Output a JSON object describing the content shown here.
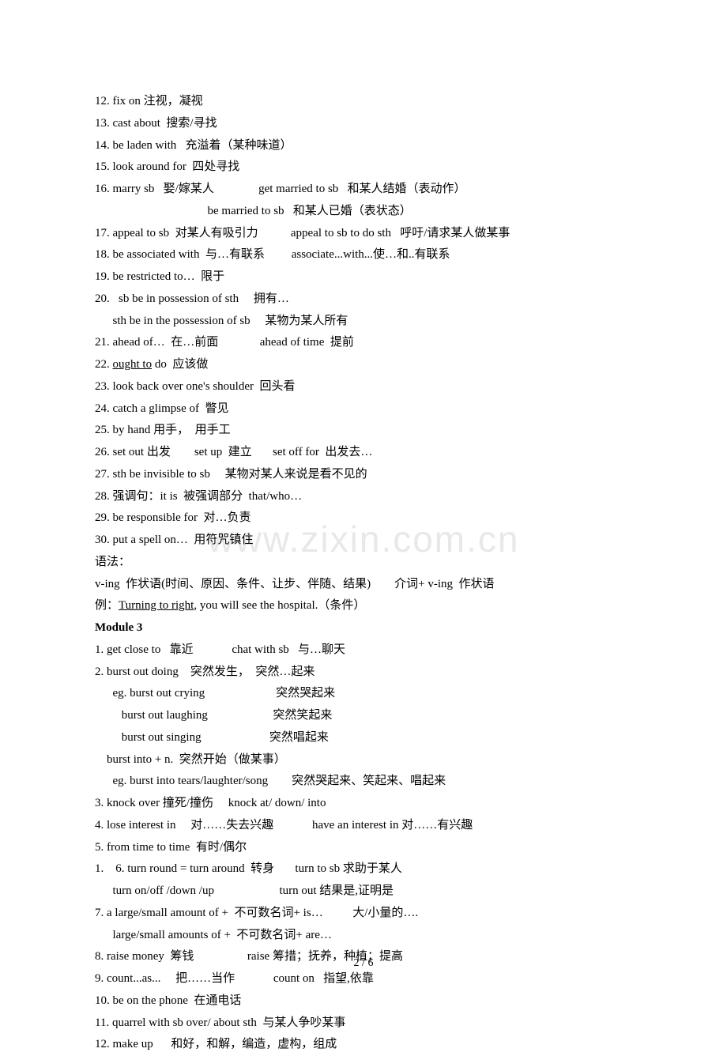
{
  "watermark": "www.zixin.com.cn",
  "lines": [
    {
      "text": "12. fix on 注视，凝视"
    },
    {
      "text": "13. cast about  搜索/寻找"
    },
    {
      "text": "14. be laden with   充溢着（某种味道）"
    },
    {
      "text": "15. look around for  四处寻找"
    },
    {
      "text": "16. marry sb   娶/嫁某人               get married to sb   和某人结婚（表动作）"
    },
    {
      "text": "                                      be married to sb   和某人已婚（表状态）"
    },
    {
      "text": "17. appeal to sb  对某人有吸引力           appeal to sb to do sth   呼吁/请求某人做某事"
    },
    {
      "text": "18. be associated with  与…有联系         associate...with...使…和..有联系"
    },
    {
      "text": "19. be restricted to…  限于"
    },
    {
      "text": "20.   sb be in possession of sth     拥有…"
    },
    {
      "text": "      sth be in the possession of sb     某物为某人所有"
    },
    {
      "text": "21. ahead of…  在…前面              ahead of time  提前"
    },
    {
      "text": "22. ",
      "parts": [
        {
          "text": "22. "
        },
        {
          "text": "ought to",
          "underline": true
        },
        {
          "text": " do  应该做"
        }
      ]
    },
    {
      "text": "23. look back over one's shoulder  回头看"
    },
    {
      "text": "24. catch a glimpse of  瞥见"
    },
    {
      "text": "25. by hand 用手，  用手工"
    },
    {
      "text": "26. set out 出发        set up  建立       set off for  出发去…"
    },
    {
      "text": "27. sth be invisible to sb     某物对某人来说是看不见的"
    },
    {
      "text": "28. 强调句：it is  被强调部分  that/who…"
    },
    {
      "text": "29. be responsible for  对…负责"
    },
    {
      "text": "30. put a spell on…  用符咒镇住"
    },
    {
      "text": "语法："
    },
    {
      "text": "v-ing  作状语(时间、原因、条件、让步、伴随、结果)        介词+ v-ing  作状语"
    },
    {
      "text": "例：",
      "parts": [
        {
          "text": "例："
        },
        {
          "text": "Turning to right",
          "underline": true
        },
        {
          "text": ", you will see the hospital.（条件）"
        }
      ]
    },
    {
      "text": "Module 3",
      "bold": true
    },
    {
      "text": "1. get close to   靠近             chat with sb   与…聊天"
    },
    {
      "text": "2. burst out doing    突然发生，  突然…起来"
    },
    {
      "text": "      eg. burst out crying                        突然哭起来"
    },
    {
      "text": "         burst out laughing                      突然笑起来"
    },
    {
      "text": "         burst out singing                       突然唱起来"
    },
    {
      "text": "    burst into + n.  突然开始（做某事）"
    },
    {
      "text": "      eg. burst into tears/laughter/song        突然哭起来、笑起来、唱起来"
    },
    {
      "text": "3. knock over 撞死/撞伤     knock at/ down/ into"
    },
    {
      "text": "4. lose interest in     对……失去兴趣             have an interest in 对……有兴趣"
    },
    {
      "text": "5. from time to time  有时/偶尔"
    },
    {
      "text": "1.    6. turn round = turn around  转身       turn to sb 求助于某人"
    },
    {
      "text": "      turn on/off /down /up                      turn out 结果是,证明是"
    },
    {
      "text": "7. a large/small amount of +  不可数名词+ is…          大/小量的…."
    },
    {
      "text": "      large/small amounts of +  不可数名词+ are…"
    },
    {
      "text": "8. raise money  筹钱                  raise 筹措；抚养，种植；提高"
    },
    {
      "text": "9. count...as...     把……当作             count on   指望,依靠"
    },
    {
      "text": "10. be on the phone  在通电话"
    },
    {
      "text": "11. quarrel with sb over/ about sth  与某人争吵某事"
    },
    {
      "text": "12. make up      和好，和解，编造，虚构，组成"
    }
  ],
  "pageNumber": "2 / 6"
}
